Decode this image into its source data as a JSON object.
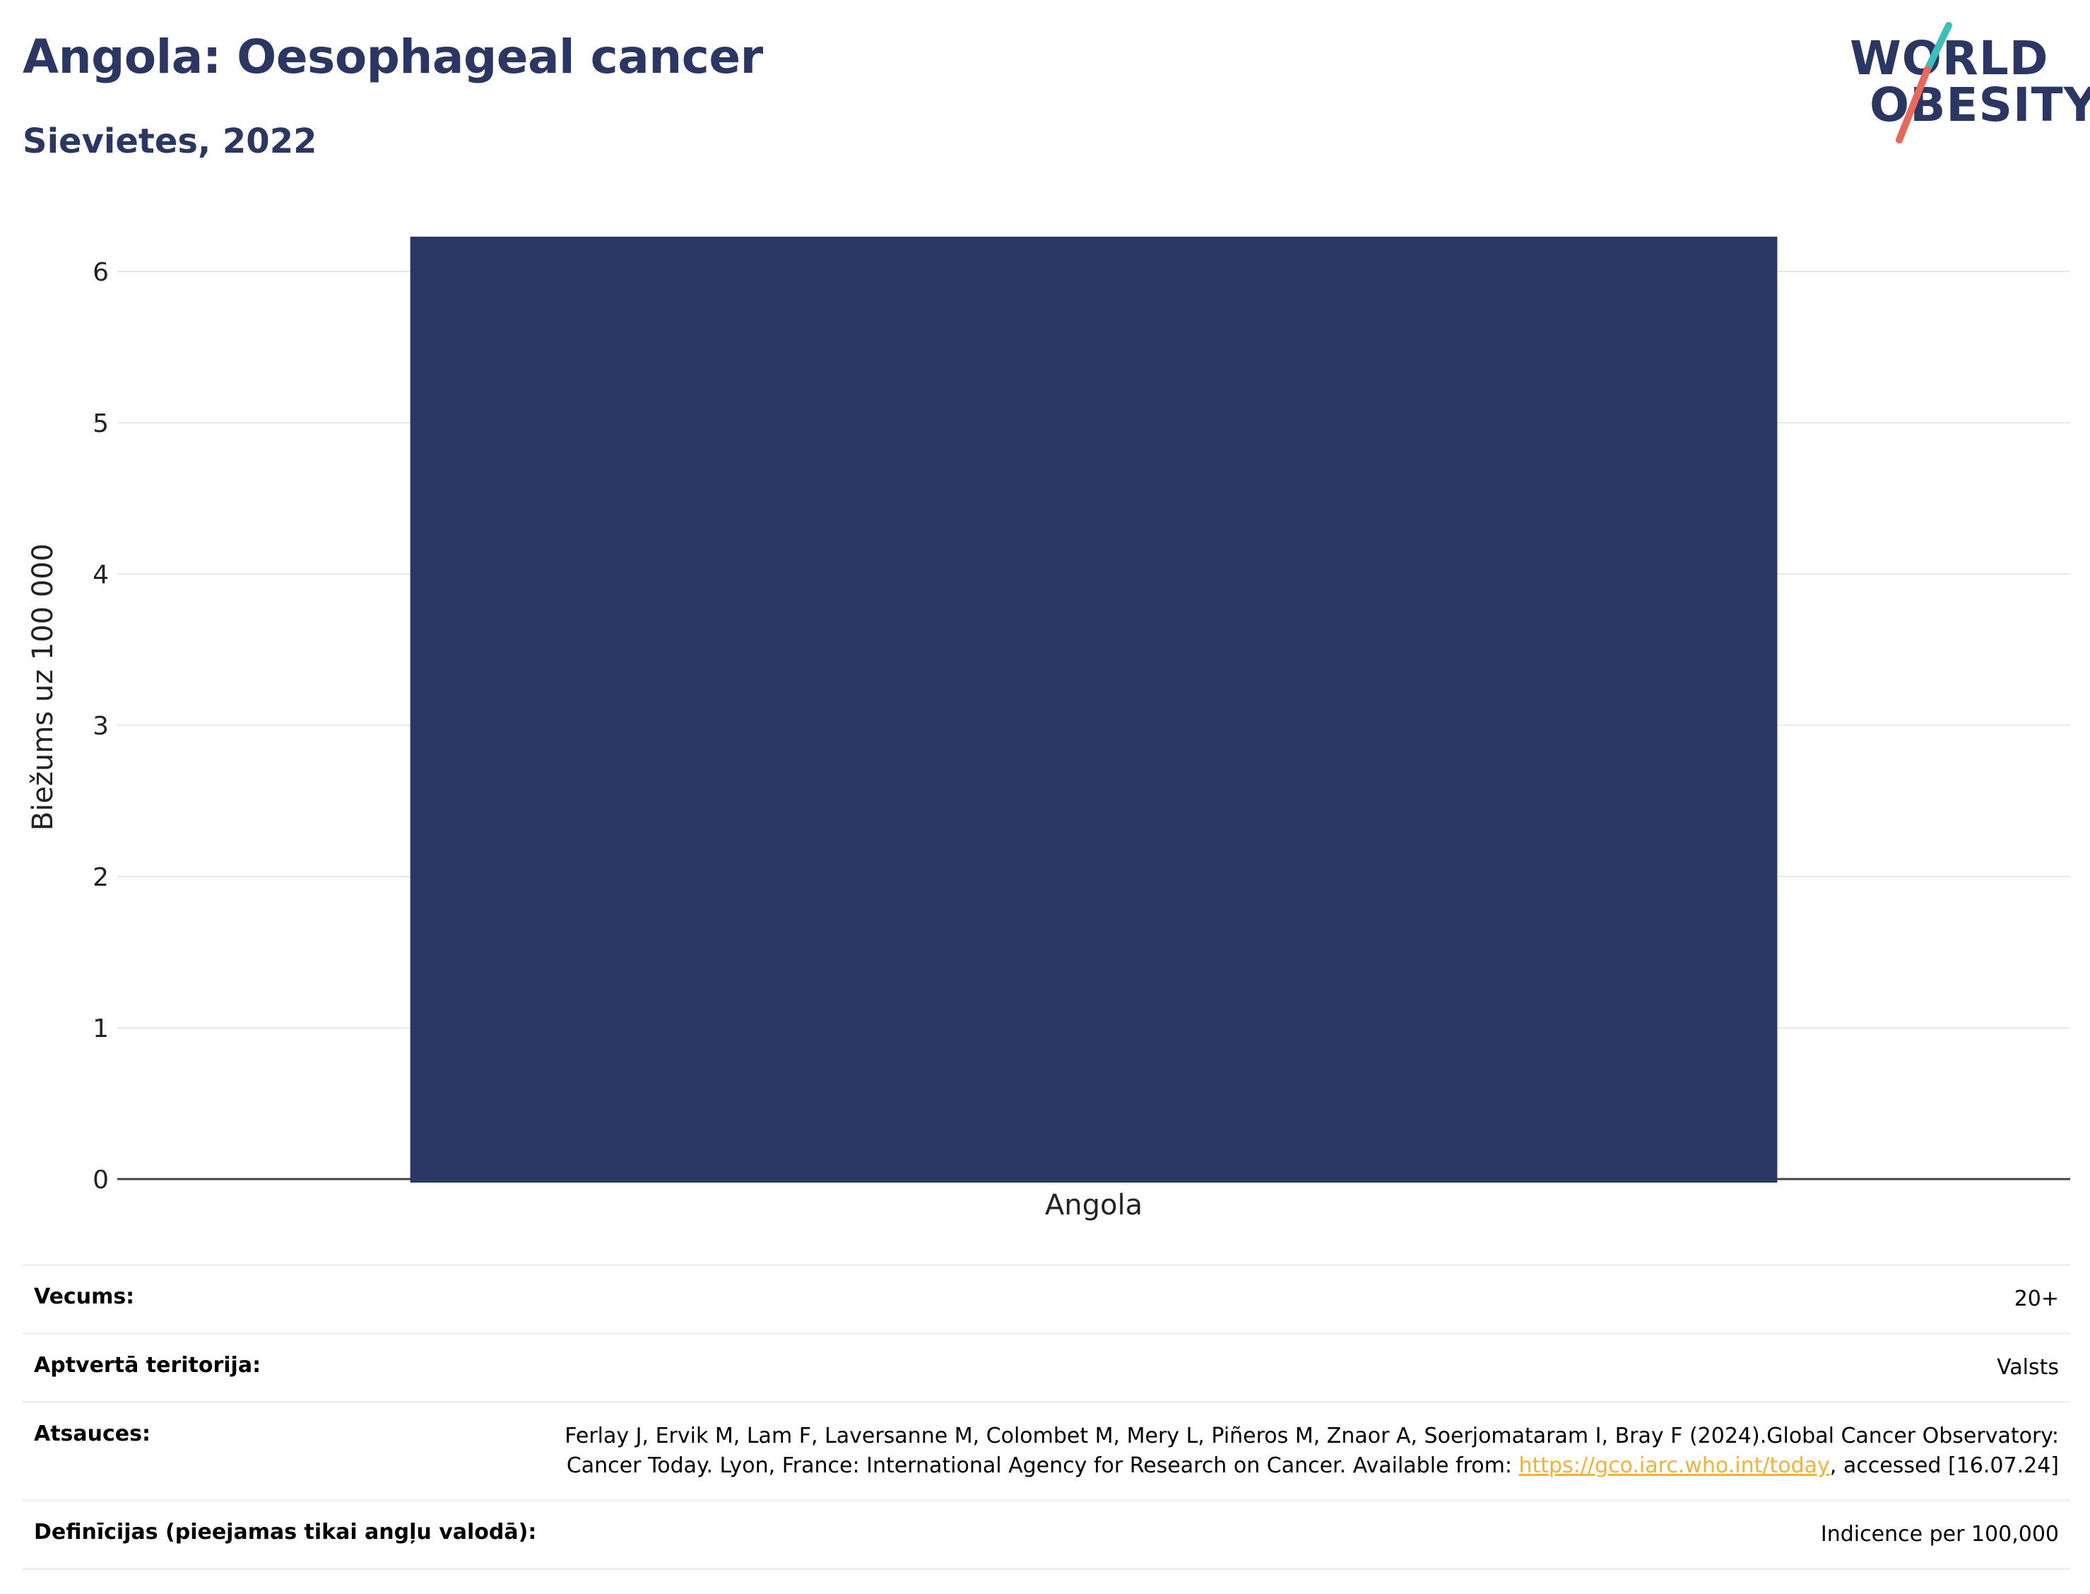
{
  "header": {
    "title": "Angola: Oesophageal cancer",
    "subtitle": "Sievietes, 2022"
  },
  "logo": {
    "line1": "WORLD",
    "line2": "OBESITY",
    "colors": {
      "text": "#2b3763",
      "slash_top": "#3bbfbd",
      "slash_bottom": "#e8695a"
    }
  },
  "chart_data": {
    "type": "bar",
    "categories": [
      "Angola"
    ],
    "values": [
      6.23
    ],
    "ylabel": "Biežums uz 100 000",
    "xlabel": "",
    "ylim": [
      0,
      6.35
    ],
    "yticks": [
      0,
      1,
      2,
      3,
      4,
      5,
      6
    ],
    "grid": true,
    "bar_color": "#2b3763"
  },
  "meta": {
    "age_label": "Vecums:",
    "age_value": "20+",
    "territory_label": "Aptvertā teritorija:",
    "territory_value": "Valsts",
    "references_label": "Atsauces:",
    "references_text_1": "Ferlay J, Ervik M, Lam F, Laversanne M, Colombet M, Mery L, Piñeros M, Znaor A, Soerjomataram I, Bray F (2024).Global Cancer Observatory: Cancer Today. Lyon, France: International Agency for Research on Cancer. Available from: ",
    "references_link": "https://gco.iarc.who.int/today",
    "references_text_2": ", accessed [16.07.24]",
    "definitions_label": "Definīcijas (pieejamas tikai angļu valodā):",
    "definitions_value": "Indicence per 100,000"
  }
}
